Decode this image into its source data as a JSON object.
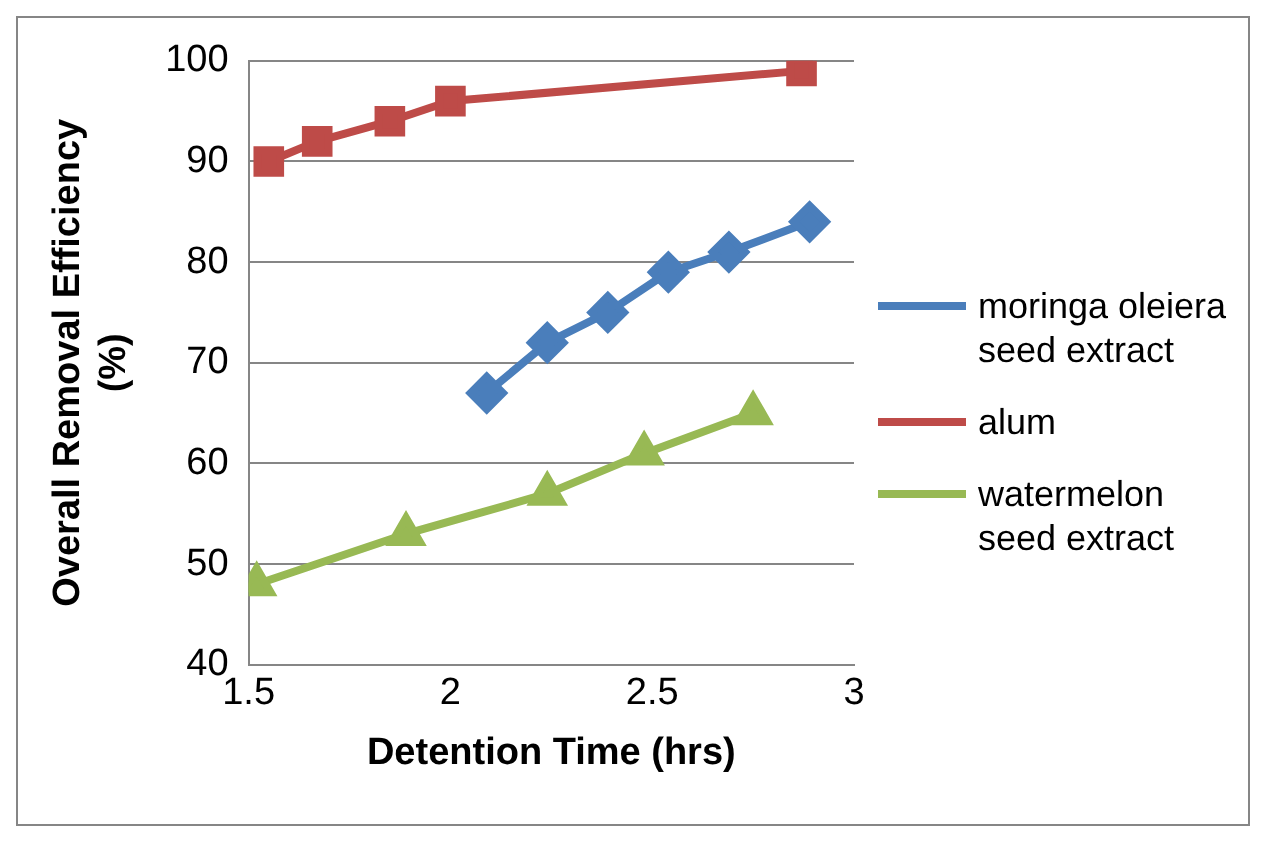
{
  "chart_data": {
    "type": "line",
    "xlabel": "Detention Time (hrs)",
    "ylabel": "Overall Removal Efficiency (%)",
    "xlim": [
      1.5,
      3
    ],
    "xticks": [
      1.5,
      2,
      2.5,
      3
    ],
    "ylim": [
      40,
      100
    ],
    "yticks": [
      40,
      50,
      60,
      70,
      80,
      90,
      100
    ],
    "grid": "y",
    "legend": "right",
    "series": [
      {
        "name": "moringa oleiera seed extract",
        "color": "#4a7ebb",
        "marker": "diamond",
        "x": [
          2.09,
          2.24,
          2.39,
          2.54,
          2.69,
          2.89
        ],
        "values": [
          67,
          72,
          75,
          79,
          81,
          84
        ]
      },
      {
        "name": "alum",
        "color": "#be4b48",
        "marker": "square",
        "x": [
          1.55,
          1.67,
          1.85,
          2.0,
          2.87
        ],
        "values": [
          90,
          92,
          94,
          96,
          99
        ]
      },
      {
        "name": "watermelon seed extract",
        "color": "#98b954",
        "marker": "triangle",
        "x": [
          1.52,
          1.89,
          2.24,
          2.48,
          2.75
        ],
        "values": [
          48,
          53,
          57,
          61,
          65
        ]
      }
    ]
  }
}
